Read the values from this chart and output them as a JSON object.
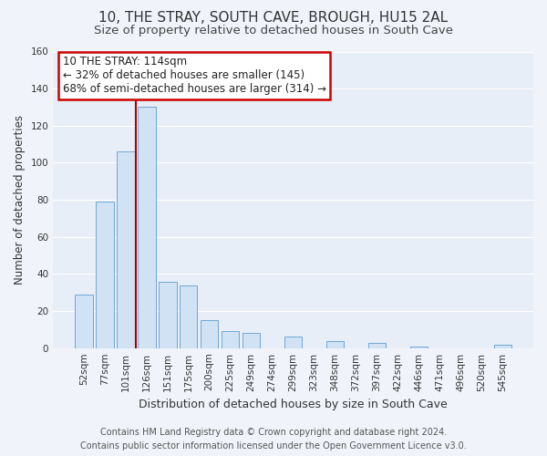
{
  "title": "10, THE STRAY, SOUTH CAVE, BROUGH, HU15 2AL",
  "subtitle": "Size of property relative to detached houses in South Cave",
  "xlabel": "Distribution of detached houses by size in South Cave",
  "ylabel": "Number of detached properties",
  "bar_labels": [
    "52sqm",
    "77sqm",
    "101sqm",
    "126sqm",
    "151sqm",
    "175sqm",
    "200sqm",
    "225sqm",
    "249sqm",
    "274sqm",
    "299sqm",
    "323sqm",
    "348sqm",
    "372sqm",
    "397sqm",
    "422sqm",
    "446sqm",
    "471sqm",
    "496sqm",
    "520sqm",
    "545sqm"
  ],
  "bar_values": [
    29,
    79,
    106,
    130,
    36,
    34,
    15,
    9,
    8,
    0,
    6,
    0,
    4,
    0,
    3,
    0,
    1,
    0,
    0,
    0,
    2
  ],
  "bar_color": "#d0e2f3",
  "bar_edge_color": "#6fa8d6",
  "ylim": [
    0,
    160
  ],
  "yticks": [
    0,
    20,
    40,
    60,
    80,
    100,
    120,
    140,
    160
  ],
  "vline_x": 2.5,
  "vline_color": "#aa0000",
  "annotation_line1": "10 THE STRAY: 114sqm",
  "annotation_line2": "← 32% of detached houses are smaller (145)",
  "annotation_line3": "68% of semi-detached houses are larger (314) →",
  "annotation_box_edge": "#cc0000",
  "footer_line1": "Contains HM Land Registry data © Crown copyright and database right 2024.",
  "footer_line2": "Contains public sector information licensed under the Open Government Licence v3.0.",
  "bg_color": "#f0f4fa",
  "plot_bg_color": "#e8eef8",
  "grid_color": "#ffffff",
  "title_fontsize": 11,
  "subtitle_fontsize": 9.5,
  "xlabel_fontsize": 9,
  "ylabel_fontsize": 8.5,
  "tick_fontsize": 7.5,
  "annotation_fontsize": 8.5,
  "footer_fontsize": 7
}
